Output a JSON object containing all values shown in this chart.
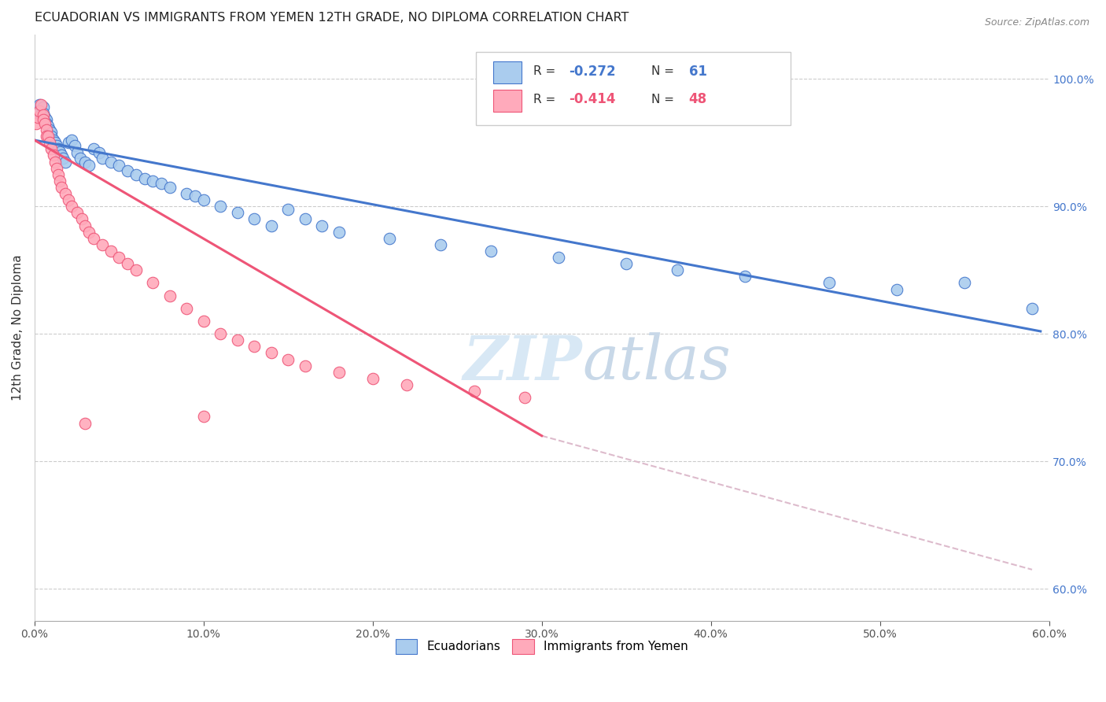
{
  "title": "ECUADORIAN VS IMMIGRANTS FROM YEMEN 12TH GRADE, NO DIPLOMA CORRELATION CHART",
  "source": "Source: ZipAtlas.com",
  "ylabel": "12th Grade, No Diploma",
  "ylabel_right_ticks": [
    "60.0%",
    "70.0%",
    "80.0%",
    "90.0%",
    "100.0%"
  ],
  "ylabel_right_values": [
    0.6,
    0.7,
    0.8,
    0.9,
    1.0
  ],
  "xmin": 0.0,
  "xmax": 0.6,
  "ymin": 0.575,
  "ymax": 1.035,
  "blue_R": -0.272,
  "blue_N": 61,
  "pink_R": -0.414,
  "pink_N": 48,
  "blue_color": "#AACCEE",
  "pink_color": "#FFAABB",
  "blue_line_color": "#4477CC",
  "pink_line_color": "#EE5577",
  "dashed_line_color": "#DDBBCC",
  "watermark_color": "#D8E8F5",
  "legend_label_blue": "Ecuadorians",
  "legend_label_pink": "Immigrants from Yemen",
  "blue_scatter_x": [
    0.002,
    0.003,
    0.004,
    0.005,
    0.005,
    0.006,
    0.006,
    0.007,
    0.007,
    0.008,
    0.009,
    0.01,
    0.01,
    0.011,
    0.012,
    0.013,
    0.014,
    0.015,
    0.016,
    0.017,
    0.018,
    0.02,
    0.022,
    0.024,
    0.025,
    0.027,
    0.03,
    0.032,
    0.035,
    0.038,
    0.04,
    0.045,
    0.05,
    0.055,
    0.06,
    0.065,
    0.07,
    0.075,
    0.08,
    0.09,
    0.095,
    0.1,
    0.11,
    0.12,
    0.13,
    0.14,
    0.15,
    0.16,
    0.17,
    0.18,
    0.21,
    0.24,
    0.27,
    0.31,
    0.35,
    0.38,
    0.42,
    0.47,
    0.51,
    0.55,
    0.59
  ],
  "blue_scatter_y": [
    0.975,
    0.98,
    0.972,
    0.978,
    0.973,
    0.97,
    0.968,
    0.968,
    0.965,
    0.963,
    0.96,
    0.958,
    0.955,
    0.952,
    0.95,
    0.948,
    0.945,
    0.943,
    0.94,
    0.938,
    0.935,
    0.95,
    0.952,
    0.948,
    0.942,
    0.938,
    0.935,
    0.932,
    0.945,
    0.942,
    0.938,
    0.935,
    0.932,
    0.928,
    0.925,
    0.922,
    0.92,
    0.918,
    0.915,
    0.91,
    0.908,
    0.905,
    0.9,
    0.895,
    0.89,
    0.885,
    0.898,
    0.89,
    0.885,
    0.88,
    0.875,
    0.87,
    0.865,
    0.86,
    0.855,
    0.85,
    0.845,
    0.84,
    0.835,
    0.84,
    0.82
  ],
  "pink_scatter_x": [
    0.001,
    0.002,
    0.003,
    0.004,
    0.005,
    0.005,
    0.006,
    0.007,
    0.007,
    0.008,
    0.009,
    0.01,
    0.011,
    0.012,
    0.013,
    0.014,
    0.015,
    0.016,
    0.018,
    0.02,
    0.022,
    0.025,
    0.028,
    0.03,
    0.032,
    0.035,
    0.04,
    0.045,
    0.05,
    0.055,
    0.06,
    0.07,
    0.08,
    0.09,
    0.1,
    0.11,
    0.12,
    0.13,
    0.14,
    0.15,
    0.16,
    0.18,
    0.2,
    0.22,
    0.26,
    0.29,
    0.1,
    0.03
  ],
  "pink_scatter_y": [
    0.965,
    0.97,
    0.975,
    0.98,
    0.972,
    0.968,
    0.965,
    0.96,
    0.955,
    0.955,
    0.95,
    0.945,
    0.94,
    0.935,
    0.93,
    0.925,
    0.92,
    0.915,
    0.91,
    0.905,
    0.9,
    0.895,
    0.89,
    0.885,
    0.88,
    0.875,
    0.87,
    0.865,
    0.86,
    0.855,
    0.85,
    0.84,
    0.83,
    0.82,
    0.81,
    0.8,
    0.795,
    0.79,
    0.785,
    0.78,
    0.775,
    0.77,
    0.765,
    0.76,
    0.755,
    0.75,
    0.735,
    0.73
  ],
  "blue_line_x": [
    0.0,
    0.595
  ],
  "blue_line_y": [
    0.952,
    0.802
  ],
  "pink_line_x": [
    0.0,
    0.3
  ],
  "pink_line_y": [
    0.952,
    0.72
  ],
  "dashed_line_x": [
    0.3,
    0.59
  ],
  "dashed_line_y": [
    0.72,
    0.615
  ]
}
